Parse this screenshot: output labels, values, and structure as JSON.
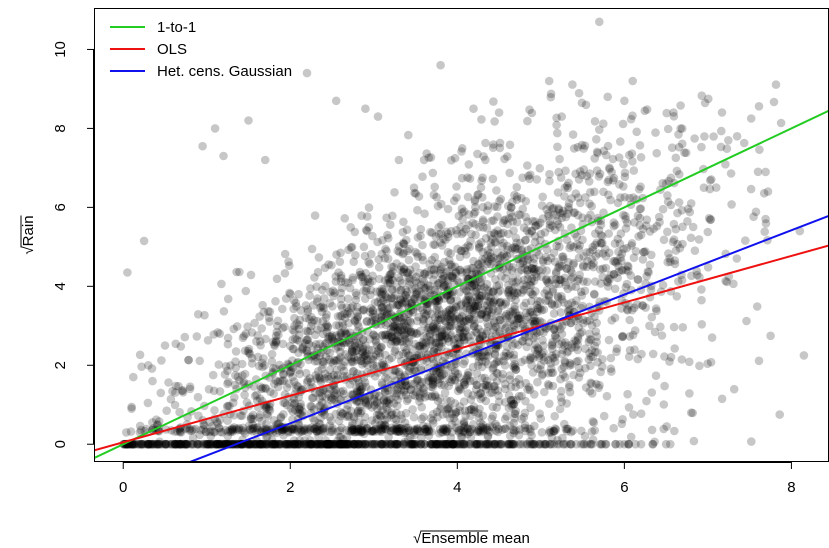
{
  "chart_data": {
    "type": "scatter",
    "title": "",
    "xlabel": {
      "radical": "√",
      "var": "Ensemble",
      "suffix": " mean"
    },
    "ylabel": {
      "radical": "√",
      "var": "Rain"
    },
    "xlim": [
      -0.35,
      8.45
    ],
    "ylim": [
      -0.45,
      11.05
    ],
    "x_ticks": [
      0,
      2,
      4,
      6,
      8
    ],
    "y_ticks": [
      0,
      2,
      4,
      6,
      8,
      10
    ],
    "grid": false,
    "legend_position": "top-left",
    "point_color": "#000000",
    "point_opacity": 0.22,
    "lines": [
      {
        "name": "1-to-1",
        "color": "#22cc22",
        "intercept": 0.0,
        "slope": 1.0
      },
      {
        "name": "OLS",
        "color": "#ee1111",
        "intercept": 0.05,
        "slope": 0.59
      },
      {
        "name": "Het. cens. Gaussian",
        "color": "#1111ee",
        "intercept": -1.1,
        "slope": 0.815
      }
    ],
    "sample_points": [
      [
        0.05,
        4.35
      ],
      [
        0.25,
        5.15
      ],
      [
        0.12,
        1.7
      ],
      [
        0.3,
        2.0
      ],
      [
        0.45,
        1.3
      ],
      [
        0.5,
        2.5
      ],
      [
        0.95,
        7.55
      ],
      [
        1.1,
        8.0
      ],
      [
        1.2,
        7.3
      ],
      [
        1.5,
        8.2
      ],
      [
        2.2,
        9.4
      ],
      [
        1.7,
        7.2
      ],
      [
        2.55,
        8.7
      ],
      [
        2.9,
        8.5
      ],
      [
        3.05,
        8.3
      ],
      [
        3.3,
        7.2
      ],
      [
        3.8,
        9.6
      ],
      [
        4.5,
        8.4
      ],
      [
        5.1,
        9.2
      ],
      [
        5.25,
        8.3
      ],
      [
        5.7,
        10.7
      ],
      [
        5.8,
        8.8
      ],
      [
        6.0,
        8.7
      ],
      [
        6.1,
        9.2
      ],
      [
        6.5,
        6.6
      ],
      [
        6.8,
        6.1
      ],
      [
        7.1,
        6.5
      ],
      [
        7.35,
        7.8
      ],
      [
        7.6,
        6.9
      ],
      [
        8.1,
        5.4
      ],
      [
        8.15,
        2.25
      ],
      [
        7.05,
        2.7
      ],
      [
        6.8,
        0.8
      ],
      [
        6.5,
        0.0
      ],
      [
        6.55,
        0.0
      ],
      [
        4.9,
        0.0
      ],
      [
        5.2,
        0.1
      ],
      [
        5.6,
        0.0
      ],
      [
        6.0,
        0.0
      ],
      [
        6.2,
        0.0
      ],
      [
        0.1,
        0.9
      ],
      [
        0.2,
        0.3
      ],
      [
        2.1,
        3.8
      ],
      [
        3.5,
        4.5
      ],
      [
        4.2,
        3.0
      ],
      [
        4.4,
        5.1
      ],
      [
        4.8,
        3.9
      ],
      [
        5.5,
        3.5
      ],
      [
        2.6,
        2.2
      ],
      [
        3.1,
        1.5
      ],
      [
        3.9,
        2.6
      ],
      [
        5.0,
        2.0
      ],
      [
        5.9,
        4.6
      ],
      [
        6.3,
        3.0
      ]
    ]
  }
}
